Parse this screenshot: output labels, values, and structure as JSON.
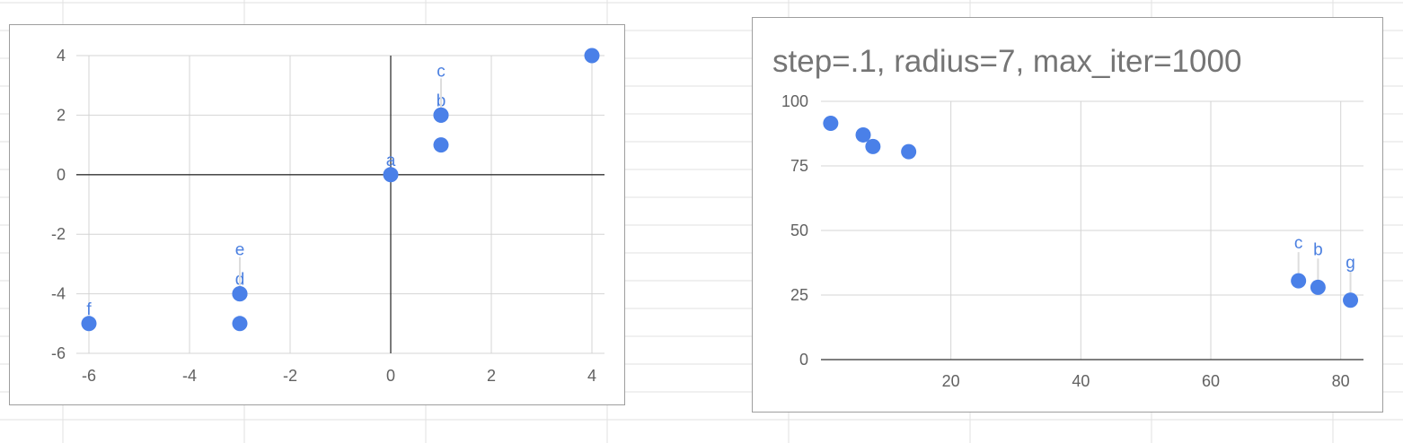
{
  "chart_data": [
    {
      "type": "scatter",
      "title": "",
      "xlabel": "",
      "ylabel": "",
      "xlim": [
        -6,
        4
      ],
      "ylim": [
        -6,
        4
      ],
      "xticks": [
        -6,
        -4,
        -2,
        0,
        2,
        4
      ],
      "yticks": [
        -6,
        -4,
        -2,
        0,
        2,
        4
      ],
      "grid": true,
      "axes_through_origin": true,
      "color": "#4a80e8",
      "points": [
        {
          "x": -6,
          "y": -5,
          "label": "f"
        },
        {
          "x": -3,
          "y": -5,
          "label": ""
        },
        {
          "x": -3,
          "y": -4,
          "label": "d"
        },
        {
          "x": -3,
          "y": -4,
          "label": "e"
        },
        {
          "x": 0,
          "y": 0,
          "label": "a"
        },
        {
          "x": 1,
          "y": 1,
          "label": ""
        },
        {
          "x": 1,
          "y": 2,
          "label": "b"
        },
        {
          "x": 1,
          "y": 2,
          "label": "c"
        },
        {
          "x": 4,
          "y": 4,
          "label": ""
        }
      ]
    },
    {
      "type": "scatter",
      "title": "step=.1, radius=7, max_iter=1000",
      "xlabel": "",
      "ylabel": "",
      "xlim": [
        0,
        83.5
      ],
      "ylim": [
        0,
        100
      ],
      "xticks": [
        20,
        40,
        60,
        80
      ],
      "yticks": [
        0,
        25,
        50,
        75,
        100
      ],
      "grid": true,
      "color": "#4a80e8",
      "points": [
        {
          "x": 1.5,
          "y": 91.5,
          "label": ""
        },
        {
          "x": 6.5,
          "y": 87,
          "label": ""
        },
        {
          "x": 8,
          "y": 82.5,
          "label": ""
        },
        {
          "x": 13.5,
          "y": 80.5,
          "label": ""
        },
        {
          "x": 73.5,
          "y": 30.5,
          "label": "c"
        },
        {
          "x": 76.5,
          "y": 28,
          "label": "b"
        },
        {
          "x": 81.5,
          "y": 23,
          "label": "g"
        }
      ]
    }
  ]
}
